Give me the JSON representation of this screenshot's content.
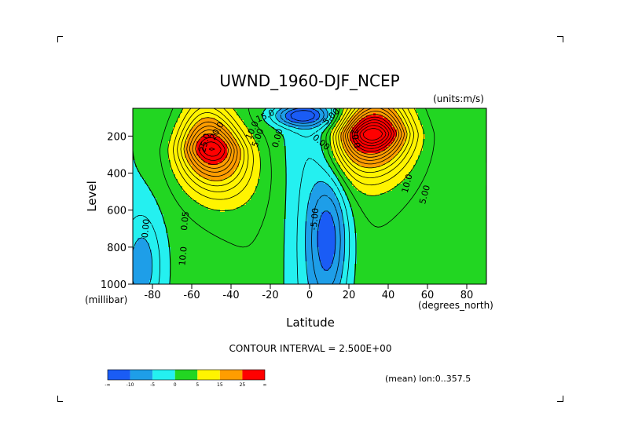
{
  "chart_data": {
    "type": "heatmap",
    "title": "UWND_1960-DJF_NCEP",
    "units_note": "(units:m/s)",
    "xlabel": "Latitude",
    "xunits": "(degrees_north)",
    "ylabel": "Level",
    "yunits": "(millibar)",
    "xlim": [
      -90,
      90
    ],
    "ylim": [
      1000,
      50
    ],
    "y_reversed": true,
    "x_ticks": [
      -80,
      -60,
      -40,
      -20,
      0,
      20,
      40,
      60,
      80
    ],
    "y_ticks": [
      200,
      400,
      600,
      800,
      1000
    ],
    "contour_interval_text": "CONTOUR INTERVAL = 2.500E+00",
    "footer_text": "(mean) lon:0..357.5",
    "contour_levels": [
      -10,
      -5,
      0,
      5,
      10,
      15,
      20,
      25
    ],
    "color_bands": [
      {
        "range": [
          -1000,
          -10
        ],
        "color": "#1a5cf5"
      },
      {
        "range": [
          -10,
          -5
        ],
        "color": "#1e9ee8"
      },
      {
        "range": [
          -5,
          0
        ],
        "color": "#24f0f0"
      },
      {
        "range": [
          0,
          5
        ],
        "color": "#22d622"
      },
      {
        "range": [
          5,
          15
        ],
        "color": "#fff400"
      },
      {
        "range": [
          15,
          25
        ],
        "color": "#ff9d00"
      },
      {
        "range": [
          25,
          1000
        ],
        "color": "#ff0000"
      }
    ],
    "colorbar_labels": [
      "-∞",
      "-10",
      "-5",
      "0",
      "5",
      "15",
      "25",
      "∞"
    ],
    "contour_labels": [
      {
        "text": "20.0",
        "lat": -46,
        "lev": 180,
        "rot": -60
      },
      {
        "text": "15.0",
        "lat": -22,
        "lev": 105,
        "rot": -25
      },
      {
        "text": "10.0",
        "lat": -28,
        "lev": 175,
        "rot": -65
      },
      {
        "text": "5.00",
        "lat": -25,
        "lev": 215,
        "rot": -70
      },
      {
        "text": "0.00",
        "lat": -15,
        "lev": 215,
        "rot": -75
      },
      {
        "text": "25.0",
        "lat": -52,
        "lev": 240,
        "rot": -75
      },
      {
        "text": "0.05",
        "lat": -62,
        "lev": 660,
        "rot": -85
      },
      {
        "text": "10.0",
        "lat": -63,
        "lev": 850,
        "rot": -85
      },
      {
        "text": "0.00",
        "lat": -82,
        "lev": 700,
        "rot": -85
      },
      {
        "text": "5.00",
        "lat": 12,
        "lev": 105,
        "rot": -45
      },
      {
        "text": "0.00",
        "lat": 5,
        "lev": 245,
        "rot": 40
      },
      {
        "text": "-5.00",
        "lat": 4,
        "lev": 650,
        "rot": -85
      },
      {
        "text": "20.0",
        "lat": 22,
        "lev": 215,
        "rot": 80
      },
      {
        "text": "10.0",
        "lat": 51,
        "lev": 460,
        "rot": -75
      },
      {
        "text": "5.00",
        "lat": 60,
        "lev": 520,
        "rot": -75
      }
    ],
    "field_model": {
      "jets": [
        {
          "lat": -50,
          "lev": 270,
          "peak": 31,
          "width_lat": 11,
          "lev_scale": 190,
          "lev_power": 1.5
        },
        {
          "lat": 32,
          "lev": 190,
          "peak": 39,
          "width_lat": 12,
          "lev_scale": 170,
          "lev_power": 1.4
        }
      ],
      "easterlies": [
        {
          "lat": 10,
          "lev": 750,
          "value": -10,
          "width_lat": 7,
          "lev_scale": 250
        },
        {
          "lat": -5,
          "lev": 90,
          "value": -13,
          "width_lat": 10,
          "lev_scale": 40
        },
        {
          "lat": -85,
          "lev": 900,
          "value": -7,
          "width_lat": 7,
          "lev_scale": 200
        }
      ],
      "background": 3.5
    }
  }
}
